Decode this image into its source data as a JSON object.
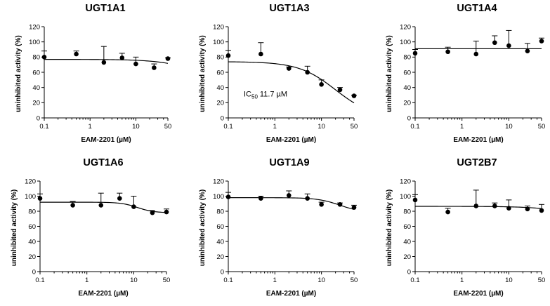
{
  "chart_data": [
    {
      "type": "scatter",
      "title": "UGT1A1",
      "xlabel": "EAM-2201 (µM)",
      "ylabel": "uninhibited activity (%)",
      "xscale": "log",
      "xlim": [
        0.1,
        50
      ],
      "ylim": [
        0,
        120
      ],
      "xticks": [
        {
          "v": 0.1,
          "label": "0.1"
        },
        {
          "v": 1,
          "label": "1"
        },
        {
          "v": 10,
          "label": "10"
        },
        {
          "v": 50,
          "label": "50"
        }
      ],
      "yticks": [
        "0",
        "20",
        "40",
        "60",
        "80",
        "100",
        "120"
      ],
      "points": [
        {
          "x": 0.1,
          "y": 80,
          "err": 8
        },
        {
          "x": 0.5,
          "y": 84,
          "err": 4
        },
        {
          "x": 2,
          "y": 73,
          "err": 21
        },
        {
          "x": 5,
          "y": 79,
          "err": 6
        },
        {
          "x": 10,
          "y": 71,
          "err": 9
        },
        {
          "x": 25,
          "y": 66,
          "err": 5
        },
        {
          "x": 50,
          "y": 78,
          "err": 1
        }
      ],
      "fit": {
        "top": 77,
        "bottom": 40,
        "ic50": 300,
        "hill": 1
      }
    },
    {
      "type": "scatter",
      "title": "UGT1A3",
      "xlabel": "EAM-2201 (µM)",
      "ylabel": "uninhibited activity (%)",
      "xscale": "log",
      "xlim": [
        0.1,
        50
      ],
      "ylim": [
        0,
        120
      ],
      "xticks": [
        {
          "v": 0.1,
          "label": "0.1"
        },
        {
          "v": 1,
          "label": "1"
        },
        {
          "v": 10,
          "label": "10"
        },
        {
          "v": 50,
          "label": "50"
        }
      ],
      "yticks": [
        "0",
        "20",
        "40",
        "60",
        "80",
        "100",
        "120"
      ],
      "points": [
        {
          "x": 0.1,
          "y": 82,
          "err": 7
        },
        {
          "x": 0.5,
          "y": 84,
          "err": 15
        },
        {
          "x": 2,
          "y": 65,
          "err": 2
        },
        {
          "x": 5,
          "y": 60,
          "err": 8
        },
        {
          "x": 10,
          "y": 44,
          "err": 6
        },
        {
          "x": 25,
          "y": 37,
          "err": 3
        },
        {
          "x": 50,
          "y": 29,
          "err": 1
        }
      ],
      "fit": {
        "top": 74,
        "bottom": 0,
        "ic50": 20,
        "hill": 1.1
      },
      "annotation": {
        "prefix": "IC",
        "subscript": "50",
        "value": "11.7 µM"
      }
    },
    {
      "type": "scatter",
      "title": "UGT1A4",
      "xlabel": "EAM-2201 (µM)",
      "ylabel": "uninhibited activity (%)",
      "xscale": "log",
      "xlim": [
        0.1,
        50
      ],
      "ylim": [
        0,
        120
      ],
      "xticks": [
        {
          "v": 0.1,
          "label": "0.1"
        },
        {
          "v": 1,
          "label": "1"
        },
        {
          "v": 10,
          "label": "10"
        },
        {
          "v": 50,
          "label": "50"
        }
      ],
      "yticks": [
        "0",
        "20",
        "40",
        "60",
        "80",
        "100",
        "120"
      ],
      "points": [
        {
          "x": 0.1,
          "y": 85,
          "err": 5
        },
        {
          "x": 0.5,
          "y": 87,
          "err": 6
        },
        {
          "x": 2,
          "y": 84,
          "err": 17
        },
        {
          "x": 5,
          "y": 99,
          "err": 9
        },
        {
          "x": 10,
          "y": 95,
          "err": 20
        },
        {
          "x": 25,
          "y": 88,
          "err": 10
        },
        {
          "x": 50,
          "y": 101,
          "err": 4
        }
      ],
      "fit": {
        "top": 91,
        "bottom": 91,
        "ic50": 1000,
        "hill": 1
      }
    },
    {
      "type": "scatter",
      "title": "UGT1A6",
      "xlabel": "EAM-2201 (µM)",
      "ylabel": "uninhibited activity (%)",
      "xscale": "log",
      "xlim": [
        0.1,
        50
      ],
      "ylim": [
        0,
        120
      ],
      "xticks": [
        {
          "v": 0.1,
          "label": "0.1"
        },
        {
          "v": 1,
          "label": "1"
        },
        {
          "v": 10,
          "label": "10"
        },
        {
          "v": 50,
          "label": "50"
        }
      ],
      "yticks": [
        "0",
        "20",
        "40",
        "60",
        "80",
        "100",
        "120"
      ],
      "points": [
        {
          "x": 0.1,
          "y": 97,
          "err": 6
        },
        {
          "x": 0.5,
          "y": 88,
          "err": 5
        },
        {
          "x": 2,
          "y": 88,
          "err": 16
        },
        {
          "x": 5,
          "y": 97,
          "err": 7
        },
        {
          "x": 10,
          "y": 86,
          "err": 14
        },
        {
          "x": 25,
          "y": 78,
          "err": 3
        },
        {
          "x": 50,
          "y": 79,
          "err": 4
        }
      ],
      "fit": {
        "top": 92,
        "bottom": 78,
        "ic50": 12,
        "hill": 2.5
      }
    },
    {
      "type": "scatter",
      "title": "UGT1A9",
      "xlabel": "EAM-2201 (µM)",
      "ylabel": "uninhibited activity (%)",
      "xscale": "log",
      "xlim": [
        0.1,
        50
      ],
      "ylim": [
        0,
        120
      ],
      "xticks": [
        {
          "v": 0.1,
          "label": "0.1"
        },
        {
          "v": 1,
          "label": "1"
        },
        {
          "v": 10,
          "label": "10"
        },
        {
          "v": 50,
          "label": "50"
        }
      ],
      "yticks": [
        "0",
        "20",
        "40",
        "60",
        "80",
        "100",
        "120"
      ],
      "points": [
        {
          "x": 0.1,
          "y": 99,
          "err": 6
        },
        {
          "x": 0.5,
          "y": 97,
          "err": 3
        },
        {
          "x": 2,
          "y": 101,
          "err": 6
        },
        {
          "x": 5,
          "y": 97,
          "err": 6
        },
        {
          "x": 10,
          "y": 89,
          "err": 3
        },
        {
          "x": 25,
          "y": 89,
          "err": 2
        },
        {
          "x": 50,
          "y": 85,
          "err": 3
        }
      ],
      "fit": {
        "top": 98,
        "bottom": 78,
        "ic50": 25,
        "hill": 1.8
      }
    },
    {
      "type": "scatter",
      "title": "UGT2B7",
      "xlabel": "EAM-2201 (µM)",
      "ylabel": "uninhibited activity (%)",
      "xscale": "log",
      "xlim": [
        0.1,
        50
      ],
      "ylim": [
        0,
        120
      ],
      "xticks": [
        {
          "v": 0.1,
          "label": "0.1"
        },
        {
          "v": 1,
          "label": "1"
        },
        {
          "v": 10,
          "label": "10"
        },
        {
          "v": 50,
          "label": "50"
        }
      ],
      "yticks": [
        "0",
        "20",
        "40",
        "60",
        "80",
        "100",
        "120"
      ],
      "points": [
        {
          "x": 0.1,
          "y": 95,
          "err": 7
        },
        {
          "x": 0.5,
          "y": 79,
          "err": 5
        },
        {
          "x": 2,
          "y": 87,
          "err": 21
        },
        {
          "x": 5,
          "y": 87,
          "err": 4
        },
        {
          "x": 10,
          "y": 84,
          "err": 11
        },
        {
          "x": 25,
          "y": 83,
          "err": 4
        },
        {
          "x": 50,
          "y": 81,
          "err": 8
        }
      ],
      "fit": {
        "top": 86.5,
        "bottom": 60,
        "ic50": 400,
        "hill": 1
      }
    }
  ]
}
